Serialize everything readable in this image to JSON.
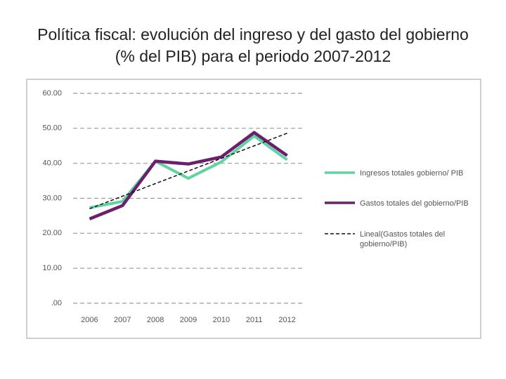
{
  "chart_data": {
    "type": "line",
    "title": "Política fiscal: evolución del ingreso y del gasto del gobierno (% del PIB) para el periodo 2007-2012",
    "categories": [
      "2006",
      "2007",
      "2008",
      "2009",
      "2010",
      "2011",
      "2012"
    ],
    "series": [
      {
        "name": "Ingresos totales gobierno/ PIB",
        "color": "#5fd4a0",
        "dashed": false,
        "width": 4,
        "values": [
          27.3,
          29.1,
          40.6,
          35.7,
          40.4,
          47.8,
          41.0
        ]
      },
      {
        "name": "Gastos totales del gobierno/PIB",
        "color": "#6b1f6e",
        "dashed": false,
        "width": 4.5,
        "values": [
          24.1,
          27.9,
          40.6,
          39.8,
          41.8,
          48.8,
          42.2
        ]
      },
      {
        "name": "Lineal(Gastos totales del gobierno/PIB)",
        "color": "#111111",
        "dashed": true,
        "width": 1.5,
        "values": [
          27.0,
          30.6,
          34.2,
          37.8,
          41.4,
          45.0,
          48.6
        ]
      }
    ],
    "ylim": [
      0,
      60
    ],
    "yticks": [
      {
        "value": 0,
        "label": ".00"
      },
      {
        "value": 10,
        "label": "10.00"
      },
      {
        "value": 20,
        "label": "20.00"
      },
      {
        "value": 30,
        "label": "30.00"
      },
      {
        "value": 40,
        "label": "40.00"
      },
      {
        "value": 50,
        "label": "50.00"
      },
      {
        "value": 60,
        "label": "60.00"
      }
    ],
    "grid": true,
    "legend": "right"
  }
}
